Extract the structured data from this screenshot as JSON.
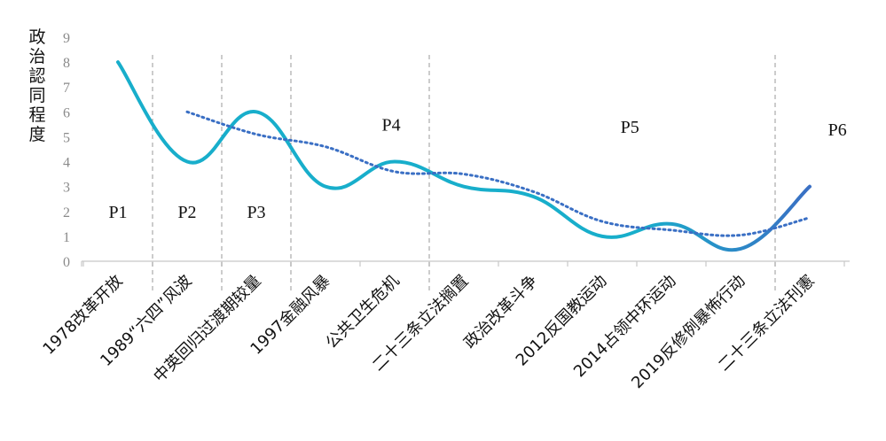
{
  "chart_data": {
    "type": "line",
    "title": "",
    "xlabel": "",
    "ylabel": "政治認同程度",
    "ylim": [
      0,
      9
    ],
    "yticks": [
      0,
      1,
      2,
      3,
      4,
      5,
      6,
      7,
      8,
      9
    ],
    "categories": [
      "1978改革开放",
      "1989“六四”风波",
      "中英回归过渡期较量",
      "1997金融风暴",
      "公共卫生危机",
      "二十三条立法搁置",
      "政治改革斗争",
      "2012反国教运动",
      "2014占领中环运动",
      "2019反修例暴怖行动",
      "二十三条立法刊憲"
    ],
    "series": [
      {
        "style": "solid-smooth",
        "color": "#18aecb",
        "color_end": "#3a6fc4",
        "x": [
          0,
          1,
          2,
          3,
          4,
          5,
          6,
          7,
          8,
          9,
          10
        ],
        "values": [
          8,
          4,
          6,
          3,
          4,
          3.0,
          2.6,
          1.0,
          1.5,
          0.5,
          3.0
        ]
      },
      {
        "style": "dotted-trend",
        "color": "#3a6fc4",
        "x": [
          1,
          2,
          3,
          4,
          5,
          6,
          7,
          8,
          9,
          10
        ],
        "values": [
          6.0,
          5.1,
          4.6,
          3.6,
          3.5,
          2.8,
          1.6,
          1.25,
          1.05,
          1.75
        ]
      }
    ],
    "periods": [
      {
        "label": "P1",
        "x": 0,
        "y": 2
      },
      {
        "label": "P2",
        "x": 1,
        "y": 2
      },
      {
        "label": "P3",
        "x": 2,
        "y": 2
      },
      {
        "label": "P4",
        "x": 3.95,
        "y": 5.5
      },
      {
        "label": "P5",
        "x": 7.4,
        "y": 5.4
      },
      {
        "label": "P6",
        "x": 10.4,
        "y": 5.3
      }
    ],
    "dividers": [
      0.5,
      1.5,
      2.5,
      4.5,
      9.5
    ],
    "grid": false,
    "legend": "none"
  }
}
